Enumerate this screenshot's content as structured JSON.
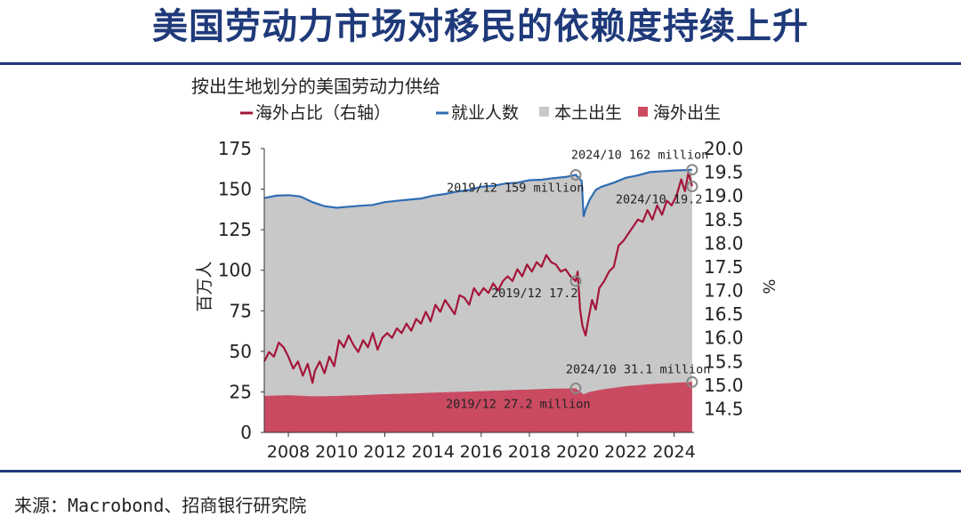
{
  "slide": {
    "title": "美国劳动力市场对移民的依赖度持续上升",
    "source": "来源：Macrobond、招商银行研究院"
  },
  "colors": {
    "title": "#1f3a7a",
    "employment_line": "#2f6db5",
    "foreign_share_line": "#a5153a",
    "native_area": "#c8c8c8",
    "foreign_area": "#c94a61",
    "marker": "#888888"
  },
  "chart_data": {
    "type": "area",
    "title": "按出生地划分的美国劳动力供给",
    "legend": [
      {
        "label": "海外占比（右轴）",
        "kind": "line",
        "color": "#a5153a"
      },
      {
        "label": "就业人数",
        "kind": "line",
        "color": "#2f6db5"
      },
      {
        "label": "本土出生",
        "kind": "area",
        "color": "#c8c8c8"
      },
      {
        "label": "海外出生",
        "kind": "area",
        "color": "#c94a61"
      }
    ],
    "legend_placement": "top",
    "ylabel_left": "百万人",
    "ylabel_right": "%",
    "xlim": [
      2007,
      2024.83
    ],
    "ylim_left": [
      0,
      175
    ],
    "ylim_right": [
      14.0,
      20.0
    ],
    "x_ticks": [
      "2008",
      "2010",
      "2012",
      "2014",
      "2016",
      "2018",
      "2020",
      "2022",
      "2024"
    ],
    "y_ticks_left": [
      "0",
      "25",
      "50",
      "75",
      "100",
      "125",
      "150",
      "175"
    ],
    "y_ticks_right": [
      "14.5",
      "15.0",
      "15.5",
      "16.0",
      "16.5",
      "17.0",
      "17.5",
      "18.0",
      "18.5",
      "19.0",
      "19.5",
      "20.0"
    ],
    "grid": false,
    "series": [
      {
        "name": "就业人数",
        "axis": "left",
        "x": [
          2007.0,
          2007.5,
          2008.0,
          2008.5,
          2009.0,
          2009.5,
          2010.0,
          2010.5,
          2011.0,
          2011.5,
          2012.0,
          2012.5,
          2013.0,
          2013.5,
          2014.0,
          2014.5,
          2015.0,
          2015.5,
          2016.0,
          2016.5,
          2017.0,
          2017.5,
          2018.0,
          2018.5,
          2019.0,
          2019.5,
          2019.92,
          2020.17,
          2020.25,
          2020.33,
          2020.5,
          2020.75,
          2021.0,
          2021.5,
          2022.0,
          2022.5,
          2023.0,
          2023.5,
          2024.0,
          2024.5,
          2024.75
        ],
        "values": [
          144.5,
          146.0,
          146.3,
          145.5,
          142.0,
          139.5,
          138.5,
          139.2,
          139.8,
          140.3,
          142.0,
          142.8,
          143.5,
          144.2,
          146.0,
          147.0,
          148.5,
          149.5,
          151.5,
          152.0,
          153.5,
          154.0,
          155.5,
          155.8,
          156.8,
          157.5,
          158.8,
          155.0,
          133.0,
          137.5,
          143.5,
          149.5,
          151.5,
          154.0,
          157.0,
          158.5,
          160.5,
          161.0,
          161.5,
          161.8,
          162.0
        ]
      },
      {
        "name": "海外出生",
        "axis": "left",
        "x": [
          2007.0,
          2008.0,
          2009.0,
          2010.0,
          2011.0,
          2012.0,
          2013.0,
          2014.0,
          2015.0,
          2016.0,
          2017.0,
          2018.0,
          2019.0,
          2019.92,
          2020.25,
          2020.5,
          2021.0,
          2022.0,
          2023.0,
          2024.0,
          2024.75
        ],
        "values": [
          22.5,
          23.0,
          22.3,
          22.5,
          23.0,
          23.6,
          24.0,
          24.6,
          25.0,
          25.5,
          26.0,
          26.5,
          27.0,
          27.2,
          23.5,
          25.0,
          26.5,
          28.5,
          29.8,
          30.6,
          31.1
        ]
      },
      {
        "name": "本土出生",
        "axis": "left",
        "derived": "就业人数 minus 海外出生"
      },
      {
        "name": "海外占比（右轴）",
        "axis": "right",
        "x": [
          2007.0,
          2007.2,
          2007.4,
          2007.6,
          2007.8,
          2008.0,
          2008.2,
          2008.4,
          2008.6,
          2008.8,
          2009.0,
          2009.1,
          2009.3,
          2009.5,
          2009.7,
          2009.9,
          2010.1,
          2010.3,
          2010.5,
          2010.7,
          2010.9,
          2011.1,
          2011.3,
          2011.5,
          2011.7,
          2011.9,
          2012.1,
          2012.3,
          2012.5,
          2012.7,
          2012.9,
          2013.1,
          2013.3,
          2013.5,
          2013.7,
          2013.9,
          2014.1,
          2014.3,
          2014.5,
          2014.7,
          2014.9,
          2015.1,
          2015.3,
          2015.5,
          2015.7,
          2015.9,
          2016.1,
          2016.3,
          2016.5,
          2016.7,
          2016.9,
          2017.1,
          2017.3,
          2017.5,
          2017.7,
          2017.9,
          2018.1,
          2018.3,
          2018.5,
          2018.7,
          2018.9,
          2019.1,
          2019.3,
          2019.5,
          2019.7,
          2019.92,
          2020.0,
          2020.1,
          2020.2,
          2020.33,
          2020.45,
          2020.6,
          2020.75,
          2020.9,
          2021.1,
          2021.3,
          2021.5,
          2021.7,
          2021.9,
          2022.1,
          2022.3,
          2022.5,
          2022.7,
          2022.9,
          2023.1,
          2023.3,
          2023.5,
          2023.7,
          2023.9,
          2024.1,
          2024.3,
          2024.45,
          2024.6,
          2024.75
        ],
        "values": [
          15.5,
          15.7,
          15.6,
          15.9,
          15.8,
          15.6,
          15.35,
          15.5,
          15.2,
          15.45,
          15.05,
          15.3,
          15.5,
          15.25,
          15.6,
          15.4,
          15.95,
          15.8,
          16.05,
          15.85,
          15.7,
          15.95,
          15.8,
          16.1,
          15.75,
          16.0,
          16.1,
          16.0,
          16.2,
          16.1,
          16.3,
          16.15,
          16.4,
          16.3,
          16.55,
          16.35,
          16.7,
          16.55,
          16.8,
          16.65,
          16.5,
          16.9,
          16.85,
          16.7,
          17.05,
          16.9,
          17.05,
          16.95,
          17.15,
          17.0,
          17.2,
          17.3,
          17.2,
          17.45,
          17.3,
          17.55,
          17.4,
          17.6,
          17.5,
          17.75,
          17.6,
          17.55,
          17.4,
          17.45,
          17.3,
          17.2,
          17.4,
          16.6,
          16.25,
          16.05,
          16.4,
          16.8,
          16.6,
          17.05,
          17.2,
          17.4,
          17.5,
          17.95,
          18.05,
          18.2,
          18.35,
          18.5,
          18.45,
          18.7,
          18.5,
          18.8,
          18.6,
          18.9,
          18.8,
          19.0,
          19.35,
          19.1,
          19.5,
          19.2
        ]
      }
    ],
    "annotations": [
      {
        "label": "2024/10 162 million",
        "series": "就业人数",
        "x": 2024.75,
        "y": 162.0
      },
      {
        "label": "2019/12 159 million",
        "series": "就业人数",
        "x": 2019.92,
        "y": 158.8
      },
      {
        "label": "2024/10 19.2",
        "series": "海外占比（右轴）",
        "x": 2024.75,
        "y": 19.2
      },
      {
        "label": "2019/12 17.2",
        "series": "海外占比（右轴）",
        "x": 2019.92,
        "y": 17.2
      },
      {
        "label": "2024/10 31.1 million",
        "series": "海外出生",
        "x": 2024.75,
        "y": 31.1
      },
      {
        "label": "2019/12 27.2 million",
        "series": "海外出生",
        "x": 2019.92,
        "y": 27.2
      }
    ]
  }
}
